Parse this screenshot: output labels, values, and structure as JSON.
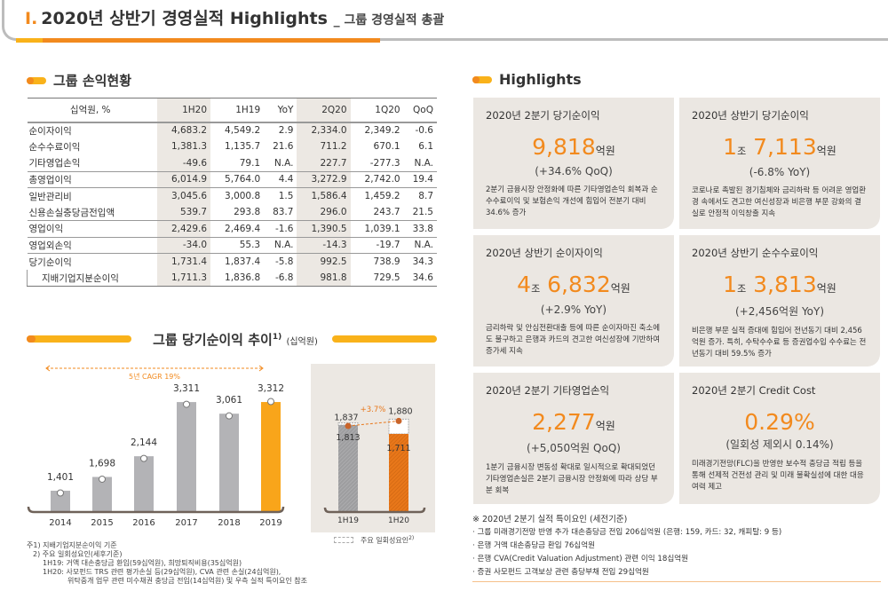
{
  "header": {
    "number": "I.",
    "title": "2020년 상반기 경영실적 Highlights",
    "subtitle": "_ 그룹 경영실적 총괄"
  },
  "pnl": {
    "title": "그룹 손익현황",
    "columns": [
      "십억원, %",
      "1H20",
      "1H19",
      "YoY",
      "2Q20",
      "1Q20",
      "QoQ"
    ],
    "rows": [
      [
        "순이자이익",
        "4,683.2",
        "4,549.2",
        "2.9",
        "2,334.0",
        "2,349.2",
        "-0.6"
      ],
      [
        "순수수료이익",
        "1,381.3",
        "1,135.7",
        "21.6",
        "711.2",
        "670.1",
        "6.1"
      ],
      [
        "기타영업손익",
        "-49.6",
        "79.1",
        "N.A.",
        "227.7",
        "-277.3",
        "N.A."
      ],
      [
        "총영업이익",
        "6,014.9",
        "5,764.0",
        "4.4",
        "3,272.9",
        "2,742.0",
        "19.4"
      ],
      [
        "일반관리비",
        "3,045.6",
        "3,000.8",
        "1.5",
        "1,586.4",
        "1,459.2",
        "8.7"
      ],
      [
        "신용손실충당금전입액",
        "539.7",
        "293.8",
        "83.7",
        "296.0",
        "243.7",
        "21.5"
      ],
      [
        "영업이익",
        "2,429.6",
        "2,469.4",
        "-1.6",
        "1,390.5",
        "1,039.1",
        "33.8"
      ],
      [
        "영업외손익",
        "-34.0",
        "55.3",
        "N.A.",
        "-14.3",
        "-19.7",
        "N.A."
      ],
      [
        "당기순이익",
        "1,731.4",
        "1,837.4",
        "-5.8",
        "992.5",
        "738.9",
        "34.3"
      ],
      [
        "지배기업지분순이익",
        "1,711.3",
        "1,836.8",
        "-6.8",
        "981.8",
        "729.5",
        "34.6"
      ]
    ]
  },
  "trend": {
    "title": "그룹 당기순이익 추이",
    "sup": "1)",
    "unit": "(십억원)",
    "cagr": "5년 CAGR 19%"
  },
  "chart_data": [
    {
      "type": "bar",
      "categories": [
        "2014",
        "2015",
        "2016",
        "2017",
        "2018",
        "2019"
      ],
      "values": [
        1401,
        1698,
        2144,
        3311,
        3061,
        3312
      ],
      "value_labels": [
        "1,401",
        "1,698",
        "2,144",
        "3,311",
        "3,061",
        "3,312"
      ],
      "highlight": "2019",
      "colors": {
        "bar": "#b3b3b6",
        "highlight": "#f9a51a"
      },
      "annotation": "5년 CAGR 19%"
    },
    {
      "type": "bar",
      "categories": [
        "1H19",
        "1H20"
      ],
      "values": [
        1813,
        1711
      ],
      "value_labels": [
        "1,813",
        "1,711"
      ],
      "totals_with_one_off": [
        1837,
        1880
      ],
      "total_labels": [
        "1,837",
        "1,880"
      ],
      "growth_label": "+3.7%",
      "colors": {
        "1H19": "#9e9ea0",
        "1H20": "#e8771a"
      },
      "legend": "주요 일회성요인",
      "legend_sup": "2)"
    }
  ],
  "footnotes": [
    "주1) 지배기업지분순이익 기준",
    "2) 주요 일회성요인(세후기준)",
    "1H19: 거액 대손충당금 환입(59십억원), 희망퇴직비용(35십억원)",
    "1H20: 사모펀드 TRS 관련 평가손실 등(29십억원), CVA 관련 손실(24십억원),",
    "위탁중개 업무 관련 미수채권 충당금 전입(14십억원) 및 우측 실적 특이요인 참조"
  ],
  "highlights": {
    "title": "Highlights",
    "cards": [
      {
        "title": "2020년 2분기 당기순이익",
        "pre": "",
        "pre_unit": "",
        "value": "9,818",
        "unit": "억원",
        "change": "(+34.6% QoQ)",
        "desc": "2분기 금융시장 안정화에 따른 기타영업손익 회복과 순수수료이익 및 보험손익 개선에 힘입어 전분기 대비 34.6% 증가"
      },
      {
        "title": "2020년 상반기 당기순이익",
        "pre": "1",
        "pre_unit": "조",
        "value": "7,113",
        "unit": "억원",
        "change": "(-6.8% YoY)",
        "desc": "코로나로 촉발된 경기침체와 금리하락 등 어려운 영업환경 속에서도 견고한 여신성장과 비은행 부문 강화의 결실로 안정적 이익창출 지속"
      },
      {
        "title": "2020년 상반기 순이자이익",
        "pre": "4",
        "pre_unit": "조",
        "value": "6,832",
        "unit": "억원",
        "change": "(+2.9% YoY)",
        "desc": "금리하락 및 안심전환대출 등에 따른 순이자마진 축소에도 불구하고 은행과 카드의 견고한 여신성장에 기반하여 증가세 지속"
      },
      {
        "title": "2020년 상반기 순수수료이익",
        "pre": "1",
        "pre_unit": "조",
        "value": "3,813",
        "unit": "억원",
        "change": "(+2,456억원 YoY)",
        "desc": "비은행 부문 실적 증대에 힘입어 전년동기 대비 2,456억원 증가. 특히, 수탁수수료 등 증권업수입 수수료는 전년동기 대비 59.5% 증가"
      },
      {
        "title": "2020년 2분기 기타영업손익",
        "pre": "",
        "pre_unit": "",
        "value": "2,277",
        "unit": "억원",
        "change": "(+5,050억원 QoQ)",
        "desc": "1분기 금융시장 변동성 확대로 일시적으로 확대되었던 기타영업손실은 2분기 금융시장 안정화에 따라 상당 부분 회복"
      },
      {
        "title": "2020년 2분기 Credit Cost",
        "pre": "",
        "pre_unit": "",
        "value": "0.29%",
        "unit": "",
        "change": "(일회성 제외시 0.14%)",
        "desc": "미래경기전망(FLC)을 반영한 보수적 충당금 적립 등을 통해 선제적 건전성 관리 및 미래 불확실성에 대한 대응여력 제고"
      }
    ]
  },
  "special": {
    "title": "※ 2020년 2분기 실적 특이요인 (세전기준)",
    "items": [
      "· 그룹 미래경기전망 반영 추가 대손충당금 전입 206십억원 (은행: 159, 카드: 32, 캐피탈: 9 등)",
      "· 은행 거액 대손충당금 환입 76십억원",
      "· 은행 CVA(Credit Valuation Adjustment) 관련 이익 18십억원",
      "· 증권 사모펀드 고객보상 관련 충당부채 전입 29십억원"
    ]
  },
  "colors": {
    "accent": "#f28a1e",
    "accent2": "#f9b21a",
    "card_bg": "#ebe7e2"
  }
}
